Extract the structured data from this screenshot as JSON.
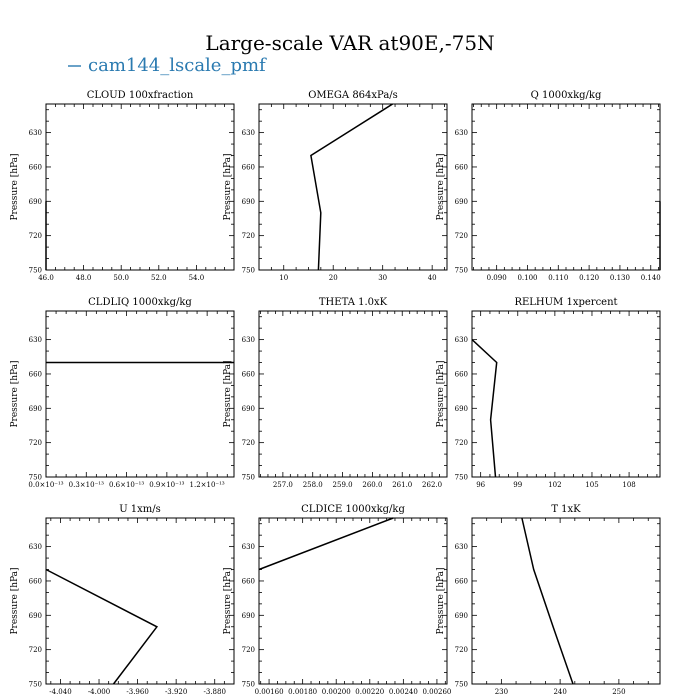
{
  "figure": {
    "title": "Large-scale VAR at90E,-75N",
    "legend_label": "cam144_lscale_pmf",
    "line_color": "#000000",
    "legend_color": "#2a7ab0"
  },
  "chart_data": [
    {
      "type": "line",
      "title": "CLOUD  100xfraction",
      "ylabel": "Pressure [hPa]",
      "xlim": [
        46.0,
        56.0
      ],
      "xticks": [
        46,
        48,
        50,
        52,
        54
      ],
      "xticklabels": [
        "46.0",
        "48.0",
        "50.0",
        "52.0",
        "54.0"
      ],
      "ylim": [
        750,
        605
      ],
      "yticks": [
        630,
        660,
        690,
        720,
        750
      ],
      "yticklabels": [
        "630",
        "660",
        "690",
        "720",
        "750"
      ],
      "series": [
        {
          "x": [
            46.0,
            46.0,
            46.0
          ],
          "y": [
            690,
            720,
            750
          ]
        }
      ]
    },
    {
      "type": "line",
      "title": "OMEGA  864xPa/s",
      "ylabel": "Pressure [hPa]",
      "xlim": [
        5,
        43
      ],
      "xticks": [
        10,
        20,
        30,
        40
      ],
      "xticklabels": [
        "10",
        "20",
        "30",
        "40"
      ],
      "ylim": [
        750,
        605
      ],
      "yticks": [
        630,
        660,
        690,
        720,
        750
      ],
      "yticklabels": [
        "630",
        "660",
        "690",
        "720",
        "750"
      ],
      "series": [
        {
          "x": [
            32.0,
            15.5,
            17.5,
            17.0
          ],
          "y": [
            605,
            650,
            700,
            750
          ]
        }
      ]
    },
    {
      "type": "line",
      "title": "Q  1000xkg/kg",
      "ylabel": "Pressure [hPa]",
      "xlim": [
        0.082,
        0.143
      ],
      "xticks": [
        0.09,
        0.1,
        0.11,
        0.12,
        0.13,
        0.14
      ],
      "xticklabels": [
        "0.090",
        "0.100",
        "0.110",
        "0.120",
        "0.130",
        "0.140"
      ],
      "ylim": [
        750,
        605
      ],
      "yticks": [
        630,
        660,
        690,
        720,
        750
      ],
      "yticklabels": [
        "630",
        "660",
        "690",
        "720",
        "750"
      ],
      "series": [
        {
          "x": [
            0.143,
            0.143,
            0.143
          ],
          "y": [
            690,
            720,
            750
          ]
        }
      ]
    },
    {
      "type": "line",
      "title": "CLDLIQ  1000xkg/kg",
      "ylabel": "Pressure [hPa]",
      "xlim": [
        0.0,
        1.4
      ],
      "xticks": [
        0.0,
        0.3,
        0.6,
        0.9,
        1.2
      ],
      "xticklabels": [
        "0.0×10⁻¹³",
        "0.3×10⁻¹³",
        "0.6×10⁻¹³",
        "0.9×10⁻¹³",
        "1.2×10⁻¹³"
      ],
      "ylim": [
        750,
        605
      ],
      "yticks": [
        630,
        660,
        690,
        720,
        750
      ],
      "yticklabels": [
        "630",
        "660",
        "690",
        "720",
        "750"
      ],
      "series": [
        {
          "x": [
            0.0,
            1.4
          ],
          "y": [
            650,
            650
          ]
        }
      ]
    },
    {
      "type": "line",
      "title": "THETA  1.0xK",
      "ylabel": "Pressure [hPa]",
      "xlim": [
        256.2,
        262.5
      ],
      "xticks": [
        257,
        258,
        259,
        260,
        261,
        262
      ],
      "xticklabels": [
        "257.0",
        "258.0",
        "259.0",
        "260.0",
        "261.0",
        "262.0"
      ],
      "ylim": [
        750,
        605
      ],
      "yticks": [
        630,
        660,
        690,
        720,
        750
      ],
      "yticklabels": [
        "630",
        "660",
        "690",
        "720",
        "750"
      ],
      "series": []
    },
    {
      "type": "line",
      "title": "RELHUM  1xpercent",
      "ylabel": "Pressure [hPa]",
      "xlim": [
        95.3,
        110.5
      ],
      "xticks": [
        96,
        99,
        102,
        105,
        108
      ],
      "xticklabels": [
        "96",
        "99",
        "102",
        "105",
        "108"
      ],
      "ylim": [
        750,
        605
      ],
      "yticks": [
        630,
        660,
        690,
        720,
        750
      ],
      "yticklabels": [
        "630",
        "660",
        "690",
        "720",
        "750"
      ],
      "series": [
        {
          "x": [
            95.3,
            97.3,
            96.8,
            97.2
          ],
          "y": [
            630,
            650,
            700,
            750
          ]
        }
      ]
    },
    {
      "type": "line",
      "title": "U  1xm/s",
      "ylabel": "Pressure [hPa]",
      "xlim": [
        -4.055,
        -3.86
      ],
      "xticks": [
        -4.04,
        -4.0,
        -3.96,
        -3.92,
        -3.88
      ],
      "xticklabels": [
        "-4.040",
        "-4.000",
        "-3.960",
        "-3.920",
        "-3.880"
      ],
      "ylim": [
        750,
        605
      ],
      "yticks": [
        630,
        660,
        690,
        720,
        750
      ],
      "yticklabels": [
        "630",
        "660",
        "690",
        "720",
        "750"
      ],
      "series": [
        {
          "x": [
            -4.055,
            -3.94,
            -3.985
          ],
          "y": [
            650,
            700,
            750
          ]
        }
      ]
    },
    {
      "type": "line",
      "title": "CLDICE  1000xkg/kg",
      "ylabel": "Pressure [hPa]",
      "xlim": [
        0.00154,
        0.00266
      ],
      "xticks": [
        0.0016,
        0.0018,
        0.002,
        0.0022,
        0.0024,
        0.0026
      ],
      "xticklabels": [
        "0.00160",
        "0.00180",
        "0.00200",
        "0.00220",
        "0.00240",
        "0.00260"
      ],
      "ylim": [
        750,
        605
      ],
      "yticks": [
        630,
        660,
        690,
        720,
        750
      ],
      "yticklabels": [
        "630",
        "660",
        "690",
        "720",
        "750"
      ],
      "series": [
        {
          "x": [
            0.00234,
            0.00154
          ],
          "y": [
            605,
            650
          ]
        }
      ]
    },
    {
      "type": "line",
      "title": "T  1xK",
      "ylabel": "Pressure [hPa]",
      "xlim": [
        225,
        257
      ],
      "xticks": [
        230,
        240,
        250
      ],
      "xticklabels": [
        "230",
        "240",
        "250"
      ],
      "ylim": [
        750,
        605
      ],
      "yticks": [
        630,
        660,
        690,
        720,
        750
      ],
      "yticklabels": [
        "630",
        "660",
        "690",
        "720",
        "750"
      ],
      "series": [
        {
          "x": [
            233.5,
            235.5,
            238.8,
            242.2
          ],
          "y": [
            605,
            650,
            700,
            750
          ]
        }
      ]
    }
  ]
}
